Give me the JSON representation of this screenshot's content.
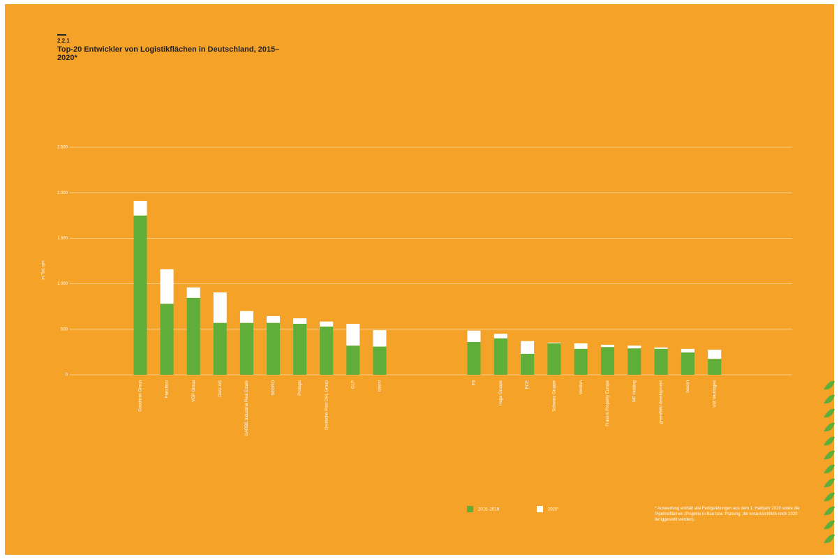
{
  "section": "2.2.1",
  "chart_data": {
    "type": "stacked-bar",
    "title": "Top-20 Entwickler von Logistikflächen in Deutschland, 2015–2020*",
    "ylabel": "in Tsd. qm",
    "categories": [
      "Goodman Group",
      "Panattoni",
      "VGP Group",
      "Dietz AG",
      "GARBE Industrial Real Estate",
      "SEGRO",
      "Prologis",
      "Deutsche Post DHL Group",
      "GLP",
      "basmi",
      "P3",
      "Hage Gruppe",
      "ECE",
      "Schwarz Gruppe",
      "Verdion",
      "Frasers Property Europe",
      "MP Holding",
      "greenfield development",
      "Ixocon",
      "VIB Vermögen"
    ],
    "series": [
      {
        "name": "2015–2019",
        "color": "#5fae3a",
        "values": [
          1750,
          780,
          845,
          570,
          570,
          570,
          560,
          530,
          320,
          310,
          360,
          400,
          230,
          345,
          285,
          305,
          290,
          285,
          245,
          175
        ]
      },
      {
        "name": "2020*",
        "color": "#ffffff",
        "values": [
          160,
          380,
          115,
          335,
          130,
          75,
          60,
          55,
          240,
          180,
          125,
          50,
          140,
          8,
          60,
          25,
          30,
          15,
          40,
          100
        ]
      }
    ],
    "ylim": [
      0,
      2500
    ],
    "yticks": [
      0,
      {
        "value": 500,
        "label": "500"
      },
      {
        "value": 1000,
        "label": "1.000"
      },
      {
        "value": 1500,
        "label": "1.500"
      },
      {
        "value": 2000,
        "label": "2.000"
      },
      {
        "value": 2500,
        "label": "2.500"
      }
    ],
    "grid": true,
    "footnote": "* Auswertung enthält alle Fertigstellungen aus dem 1. Halbjahr 2020 sowie die Pipelineflächen (Projekte in Bau bzw. Planung, die voraussichtlich noch 2020 fertiggestellt werden)."
  }
}
